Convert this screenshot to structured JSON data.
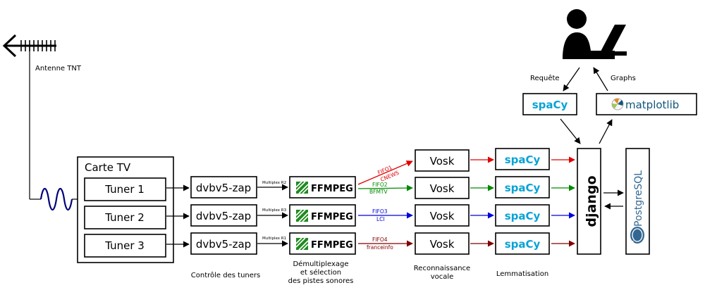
{
  "antenna": {
    "label": "Antenne TNT"
  },
  "card": {
    "title": "Carte TV",
    "tuners": [
      "Tuner 1",
      "Tuner 2",
      "Tuner 3"
    ]
  },
  "zap_label": "dvbv5-zap",
  "multiplex_labels": [
    "Multiplex R2",
    "Multiplex R3",
    "Multiplex R1"
  ],
  "ffmpeg_label": "FFMPEG",
  "fifos": [
    {
      "fifo": "FIFO1",
      "channel": "CNEWS",
      "color": "#e00000"
    },
    {
      "fifo": "FIFO2",
      "channel": "BFMTV",
      "color": "#008a00"
    },
    {
      "fifo": "FIFO3",
      "channel": "LCI",
      "color": "#0000e0"
    },
    {
      "fifo": "FIFO4",
      "channel": "franceinfo",
      "color": "#800000"
    }
  ],
  "vosk_label": "Vosk",
  "spacy_label": "spaCy",
  "spacy_color": "#09a3d5",
  "django_label": "django",
  "postgres_label": "PostgreSQL",
  "postgres_color": "#336791",
  "matplotlib_label": "matplotlib",
  "user": {
    "request_label": "Requête",
    "graphs_label": "Graphs"
  },
  "stage_labels": {
    "tuners": "Contrôle des tuners",
    "demux": [
      "Démultiplexage",
      "et sélection",
      "des pistes sonores"
    ],
    "speech": [
      "Reconnaissance",
      "vocale"
    ],
    "lemma": "Lemmatisation"
  },
  "colors": {
    "stroke": "#000000",
    "wave": "#00007a"
  }
}
